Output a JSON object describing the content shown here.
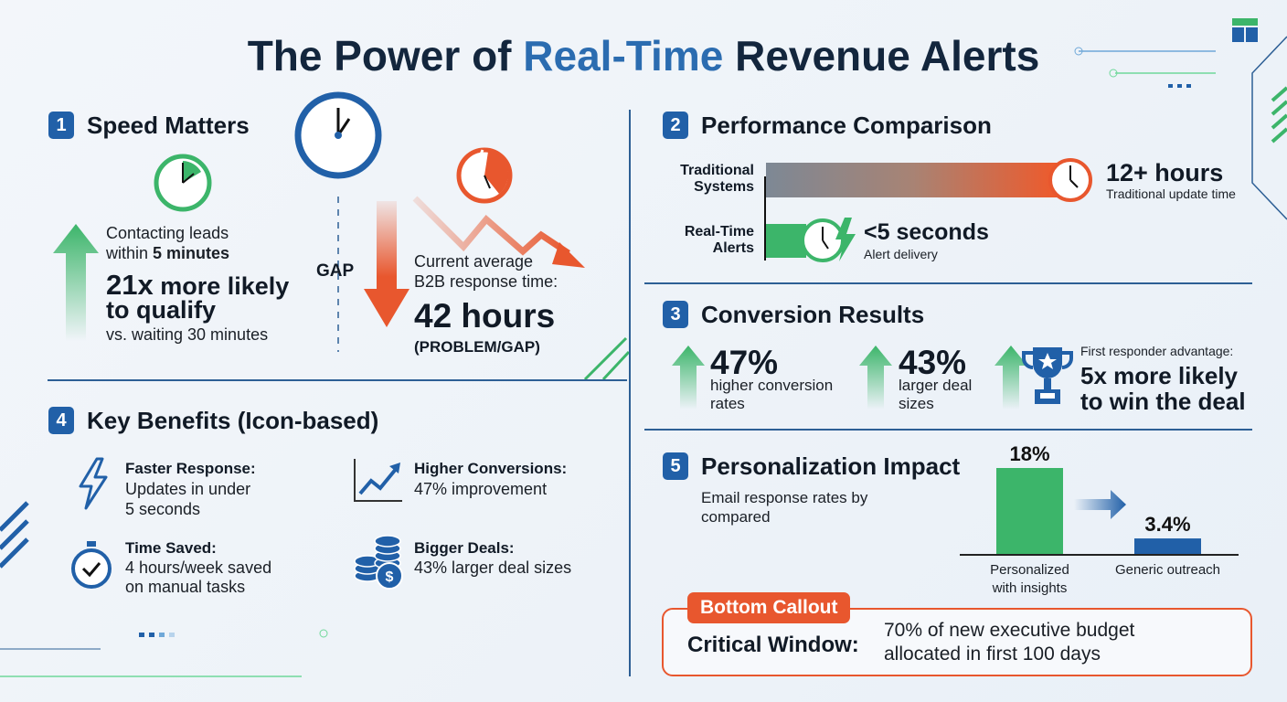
{
  "title": {
    "prefix": "The Power of ",
    "highlight": "Real-Time",
    "suffix": " Revenue Alerts"
  },
  "colors": {
    "navy": "#13263d",
    "blue": "#2160a8",
    "green": "#3cb56a",
    "orange": "#e8572e"
  },
  "speed": {
    "number": "1",
    "heading": "Speed Matters",
    "line1": "Contacting leads",
    "line2_prefix": "within ",
    "line2_bold": "5 minutes",
    "stat": "21x",
    "stat_rest": " more likely",
    "stat2": "to qualify",
    "compare": "vs. waiting 30 minutes",
    "gap": "GAP",
    "current1": "Current average",
    "current2": "B2B response time:",
    "hours": "42 hours",
    "problem": "(PROBLEM/GAP)"
  },
  "benefits": {
    "number": "4",
    "heading": "Key Benefits (Icon-based)",
    "items": [
      {
        "icon": "lightning-icon",
        "title": "Faster Response:",
        "l1": "Updates in under",
        "l2": "5 seconds"
      },
      {
        "icon": "trend-chart-icon",
        "title": "Higher Conversions:",
        "l1": "47% improvement",
        "l2": ""
      },
      {
        "icon": "stopwatch-icon",
        "title": "Time Saved:",
        "l1": "4 hours/week saved",
        "l2": "on manual tasks"
      },
      {
        "icon": "coins-icon",
        "title": "Bigger Deals:",
        "l1": "43% larger deal sizes",
        "l2": ""
      }
    ]
  },
  "performance": {
    "number": "2",
    "heading": "Performance Comparison",
    "traditional": {
      "l1": "Traditional",
      "l2": "Systems",
      "value": "12+ hours",
      "caption": "Traditional update time"
    },
    "realtime": {
      "l1": "Real-Time",
      "l2": "Alerts",
      "value": "<5 seconds",
      "caption": "Alert delivery"
    }
  },
  "conversion": {
    "number": "3",
    "heading": "Conversion Results",
    "s1": {
      "value": "47%",
      "l1": "higher conversion",
      "l2": "rates"
    },
    "s2": {
      "value": "43%",
      "l1": "larger deal",
      "l2": "sizes"
    },
    "s3": {
      "intro": "First responder advantage:",
      "l1": "5x more likely",
      "l2": "to win the deal"
    }
  },
  "personalization": {
    "number": "5",
    "heading": "Personalization Impact",
    "sub1": "Email response rates by",
    "sub2": "compared"
  },
  "chart_data": {
    "type": "bar",
    "categories": [
      "Personalized with insights",
      "Generic outreach"
    ],
    "values": [
      18,
      3.4
    ],
    "labels": [
      "18%",
      "3.4%"
    ],
    "cat_lines": [
      [
        "Personalized",
        "with insights"
      ],
      [
        "Generic outreach"
      ]
    ],
    "colors": [
      "#3cb56a",
      "#2160a8"
    ],
    "ylim": [
      0,
      18
    ]
  },
  "callout": {
    "tab": "Bottom Callout",
    "label": "Critical Window:",
    "l1": "70% of new executive budget",
    "l2": "allocated in first 100 days"
  }
}
